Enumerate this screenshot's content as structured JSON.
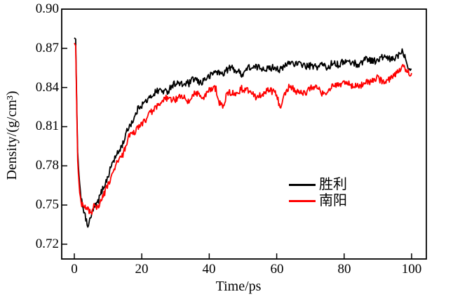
{
  "figure": {
    "background": "#ffffff"
  },
  "chart_data": {
    "type": "line",
    "title": "",
    "xlabel": "Time/ps",
    "ylabel": "Density/(g/cm³)",
    "xlim": [
      -3.74,
      104.37
    ],
    "ylim": [
      0.7087,
      0.9
    ],
    "x_ticks": [
      0,
      20,
      40,
      60,
      80,
      100
    ],
    "x_tick_labels": [
      "0",
      "20",
      "40",
      "60",
      "80",
      "100"
    ],
    "y_ticks": [
      0.9,
      0.87,
      0.84,
      0.81,
      0.78,
      0.75,
      0.72
    ],
    "y_tick_labels": [
      "0.90",
      "0.87",
      "0.84",
      "0.81",
      "0.78",
      "0.75",
      "0.72"
    ],
    "grid": false,
    "frame": true,
    "ticks_inward": true,
    "axis_color": "#000000",
    "legend_position": "inside-right-middle",
    "series": [
      {
        "name": "胜利",
        "color": "#000000",
        "noise_amplitude": 0.0056,
        "points": [
          [
            0,
            0.878
          ],
          [
            0.4,
            0.877
          ],
          [
            0.7,
            0.83
          ],
          [
            1,
            0.79
          ],
          [
            1.5,
            0.765
          ],
          [
            2,
            0.755
          ],
          [
            2.5,
            0.748
          ],
          [
            3,
            0.741
          ],
          [
            3.5,
            0.735
          ],
          [
            4,
            0.732
          ],
          [
            4.5,
            0.734
          ],
          [
            5,
            0.739
          ],
          [
            5.5,
            0.746
          ],
          [
            6,
            0.75
          ],
          [
            7,
            0.755
          ],
          [
            8,
            0.762
          ],
          [
            9,
            0.768
          ],
          [
            10,
            0.773
          ],
          [
            11,
            0.779
          ],
          [
            12,
            0.785
          ],
          [
            13,
            0.791
          ],
          [
            14,
            0.797
          ],
          [
            15,
            0.803
          ],
          [
            16,
            0.809
          ],
          [
            17,
            0.814
          ],
          [
            18,
            0.818
          ],
          [
            19,
            0.822
          ],
          [
            20,
            0.825
          ],
          [
            21,
            0.829
          ],
          [
            22,
            0.832
          ],
          [
            23,
            0.835
          ],
          [
            24,
            0.837
          ],
          [
            25,
            0.838
          ],
          [
            26,
            0.838
          ],
          [
            27,
            0.839
          ],
          [
            28,
            0.838
          ],
          [
            29,
            0.839
          ],
          [
            30,
            0.841
          ],
          [
            32,
            0.842
          ],
          [
            34,
            0.84
          ],
          [
            36,
            0.846
          ],
          [
            38,
            0.844
          ],
          [
            40,
            0.85
          ],
          [
            42,
            0.852
          ],
          [
            44,
            0.849
          ],
          [
            46,
            0.852
          ],
          [
            48,
            0.854
          ],
          [
            50,
            0.852
          ],
          [
            52,
            0.856
          ],
          [
            54,
            0.855
          ],
          [
            56,
            0.852
          ],
          [
            58,
            0.855
          ],
          [
            60,
            0.857
          ],
          [
            62,
            0.855
          ],
          [
            64,
            0.857
          ],
          [
            66,
            0.855
          ],
          [
            68,
            0.858
          ],
          [
            70,
            0.859
          ],
          [
            72,
            0.857
          ],
          [
            74,
            0.856
          ],
          [
            76,
            0.858
          ],
          [
            78,
            0.859
          ],
          [
            80,
            0.86
          ],
          [
            82,
            0.859
          ],
          [
            84,
            0.858
          ],
          [
            86,
            0.861
          ],
          [
            88,
            0.862
          ],
          [
            90,
            0.86
          ],
          [
            92,
            0.862
          ],
          [
            94,
            0.863
          ],
          [
            96,
            0.866
          ],
          [
            97,
            0.868
          ],
          [
            98,
            0.864
          ],
          [
            99,
            0.858
          ],
          [
            100,
            0.855
          ]
        ]
      },
      {
        "name": "南阳",
        "color": "#ff0000",
        "noise_amplitude": 0.0056,
        "points": [
          [
            0,
            0.874
          ],
          [
            0.4,
            0.872
          ],
          [
            0.7,
            0.828
          ],
          [
            1,
            0.785
          ],
          [
            1.5,
            0.762
          ],
          [
            2,
            0.754
          ],
          [
            2.5,
            0.75
          ],
          [
            3,
            0.748
          ],
          [
            3.5,
            0.747
          ],
          [
            4,
            0.746
          ],
          [
            4.5,
            0.745
          ],
          [
            5,
            0.744
          ],
          [
            5.5,
            0.747
          ],
          [
            6,
            0.75
          ],
          [
            7,
            0.749
          ],
          [
            8,
            0.753
          ],
          [
            9,
            0.758
          ],
          [
            10,
            0.764
          ],
          [
            11,
            0.77
          ],
          [
            12,
            0.776
          ],
          [
            13,
            0.782
          ],
          [
            14,
            0.788
          ],
          [
            15,
            0.794
          ],
          [
            16,
            0.799
          ],
          [
            17,
            0.804
          ],
          [
            18,
            0.808
          ],
          [
            19,
            0.812
          ],
          [
            20,
            0.815
          ],
          [
            21,
            0.818
          ],
          [
            22,
            0.821
          ],
          [
            23,
            0.824
          ],
          [
            24,
            0.826
          ],
          [
            25,
            0.827
          ],
          [
            26,
            0.828
          ],
          [
            27,
            0.829
          ],
          [
            28,
            0.83
          ],
          [
            29,
            0.83
          ],
          [
            30,
            0.832
          ],
          [
            32,
            0.833
          ],
          [
            34,
            0.83
          ],
          [
            36,
            0.835
          ],
          [
            38,
            0.832
          ],
          [
            40,
            0.836
          ],
          [
            42,
            0.837
          ],
          [
            43,
            0.829
          ],
          [
            44,
            0.825
          ],
          [
            45,
            0.833
          ],
          [
            46,
            0.836
          ],
          [
            48,
            0.838
          ],
          [
            50,
            0.837
          ],
          [
            52,
            0.838
          ],
          [
            54,
            0.832
          ],
          [
            56,
            0.837
          ],
          [
            58,
            0.836
          ],
          [
            60,
            0.833
          ],
          [
            61,
            0.823
          ],
          [
            62,
            0.833
          ],
          [
            64,
            0.839
          ],
          [
            66,
            0.838
          ],
          [
            68,
            0.836
          ],
          [
            70,
            0.838
          ],
          [
            72,
            0.84
          ],
          [
            74,
            0.836
          ],
          [
            76,
            0.84
          ],
          [
            78,
            0.841
          ],
          [
            80,
            0.842
          ],
          [
            82,
            0.839
          ],
          [
            84,
            0.843
          ],
          [
            86,
            0.842
          ],
          [
            88,
            0.844
          ],
          [
            90,
            0.845
          ],
          [
            92,
            0.846
          ],
          [
            94,
            0.848
          ],
          [
            96,
            0.852
          ],
          [
            98,
            0.854
          ],
          [
            99,
            0.852
          ],
          [
            100,
            0.851
          ]
        ]
      }
    ]
  }
}
